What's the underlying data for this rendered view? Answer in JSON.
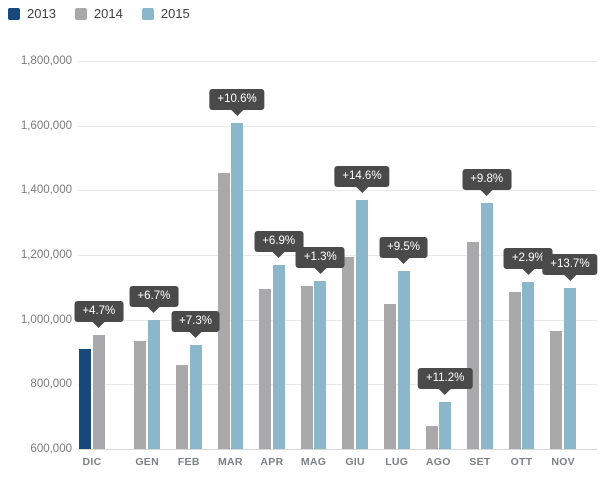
{
  "legend": {
    "items": [
      {
        "label": "2013",
        "color": "#17497b"
      },
      {
        "label": "2014",
        "color": "#a9a9ab"
      },
      {
        "label": "2015",
        "color": "#8cb7ca"
      }
    ]
  },
  "y_axis": {
    "tick_labels": [
      "600,000",
      "800,000",
      "1,000,000",
      "1,200,000",
      "1,400,000",
      "1,600,000",
      "1,800,000"
    ],
    "min": 600000,
    "max": 1800000,
    "step": 200000
  },
  "colors": {
    "tooltip_bg": "#4a4a4b",
    "tooltip_text": "#ffffff",
    "grid": "#e9e9e9",
    "baseline": "#d8d8d8",
    "axis_text": "#7a7a7a",
    "background": "#ffffff"
  },
  "chart_data": {
    "type": "bar",
    "title": "",
    "xlabel": "",
    "ylabel": "",
    "categories": [
      "DIC",
      "GEN",
      "FEB",
      "MAR",
      "APR",
      "MAG",
      "GIU",
      "LUG",
      "AGO",
      "SET",
      "OTT",
      "NOV"
    ],
    "series": [
      {
        "name": "2013",
        "color": "#17497b",
        "values": [
          910000,
          null,
          null,
          null,
          null,
          null,
          null,
          null,
          null,
          null,
          null,
          null
        ]
      },
      {
        "name": "2014",
        "color": "#a9a9ab",
        "values": [
          953000,
          935000,
          860000,
          1455000,
          1095000,
          1105000,
          1195000,
          1050000,
          670000,
          1240000,
          1085000,
          965000
        ]
      },
      {
        "name": "2015",
        "color": "#8cb7ca",
        "values": [
          null,
          998000,
          923000,
          1609000,
          1170000,
          1119000,
          1370000,
          1150000,
          745000,
          1362000,
          1116000,
          1097000
        ]
      }
    ],
    "tooltips": [
      {
        "category": "DIC",
        "label": "+4.7%",
        "target_series": "2014"
      },
      {
        "category": "GEN",
        "label": "+6.7%",
        "target_series": "2015"
      },
      {
        "category": "FEB",
        "label": "+7.3%",
        "target_series": "2015"
      },
      {
        "category": "MAR",
        "label": "+10.6%",
        "target_series": "2015"
      },
      {
        "category": "APR",
        "label": "+6.9%",
        "target_series": "2015"
      },
      {
        "category": "MAG",
        "label": "+1.3%",
        "target_series": "2015"
      },
      {
        "category": "GIU",
        "label": "+14.6%",
        "target_series": "2015"
      },
      {
        "category": "LUG",
        "label": "+9.5%",
        "target_series": "2015"
      },
      {
        "category": "AGO",
        "label": "+11.2%",
        "target_series": "2015"
      },
      {
        "category": "SET",
        "label": "+9.8%",
        "target_series": "2015"
      },
      {
        "category": "OTT",
        "label": "+2.9%",
        "target_series": "2015"
      },
      {
        "category": "NOV",
        "label": "+13.7%",
        "target_series": "2015"
      }
    ],
    "ylim": [
      600000,
      1800000
    ],
    "grid": "horizontal",
    "legend_position": "top-left"
  }
}
